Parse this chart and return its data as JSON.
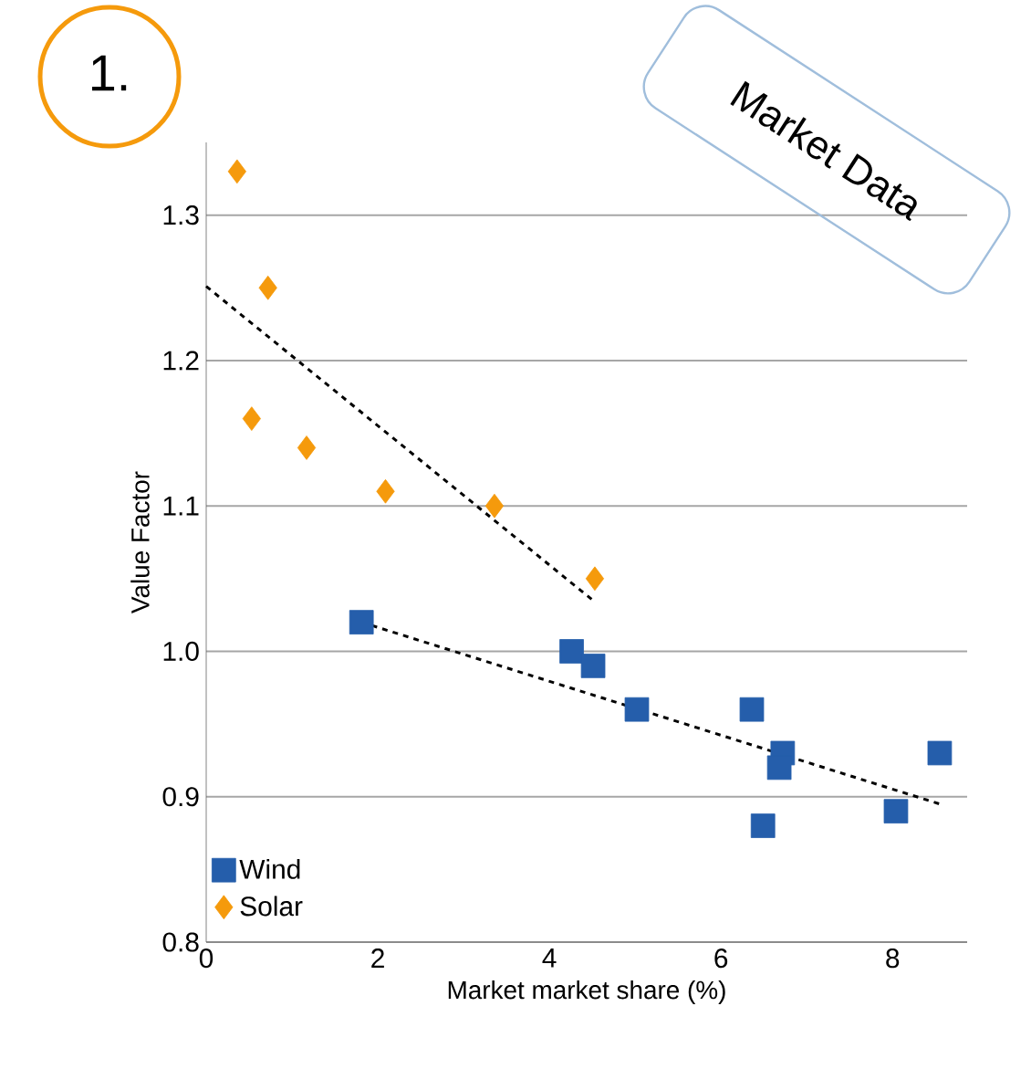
{
  "chart_data": {
    "type": "scatter",
    "xlabel": "Market market share (%)",
    "ylabel": "Value Factor",
    "annotations": [
      "1.",
      "Market Data"
    ],
    "xlim": [
      0,
      8.87
    ],
    "ylim": [
      0.8,
      1.35
    ],
    "xticks": [
      0,
      2,
      4,
      6,
      8
    ],
    "yticks": [
      0.8,
      0.9,
      {
        "value": 1.0,
        "label": "1.0"
      },
      1.1,
      1.2,
      1.3
    ],
    "grid": "y",
    "legend": "bottom left",
    "series": [
      {
        "name": "Wind",
        "color": "#255eab",
        "marker": "square",
        "x": [
          1.81,
          4.26,
          4.51,
          5.02,
          6.36,
          6.72,
          6.68,
          6.49,
          8.04,
          8.55
        ],
        "values": [
          1.02,
          1.0,
          0.99,
          0.96,
          0.96,
          0.93,
          0.92,
          0.88,
          0.89,
          0.93
        ]
      },
      {
        "name": "Solar",
        "color": "#f59a0c",
        "marker": "diamond",
        "x": [
          0.36,
          0.72,
          0.53,
          1.17,
          2.09,
          3.36,
          4.53
        ],
        "values": [
          1.33,
          1.25,
          1.16,
          1.14,
          1.11,
          1.1,
          1.05
        ]
      },
      {
        "type": "line",
        "color": "#000000",
        "line_style": "dashed",
        "marker": "none",
        "x": [
          0,
          4.53
        ],
        "values": [
          1.251,
          1.034
        ]
      },
      {
        "type": "line",
        "color": "#000000",
        "line_style": "dashed",
        "marker": "none",
        "x": [
          1.81,
          8.55
        ],
        "values": [
          1.02,
          0.895
        ]
      }
    ]
  }
}
